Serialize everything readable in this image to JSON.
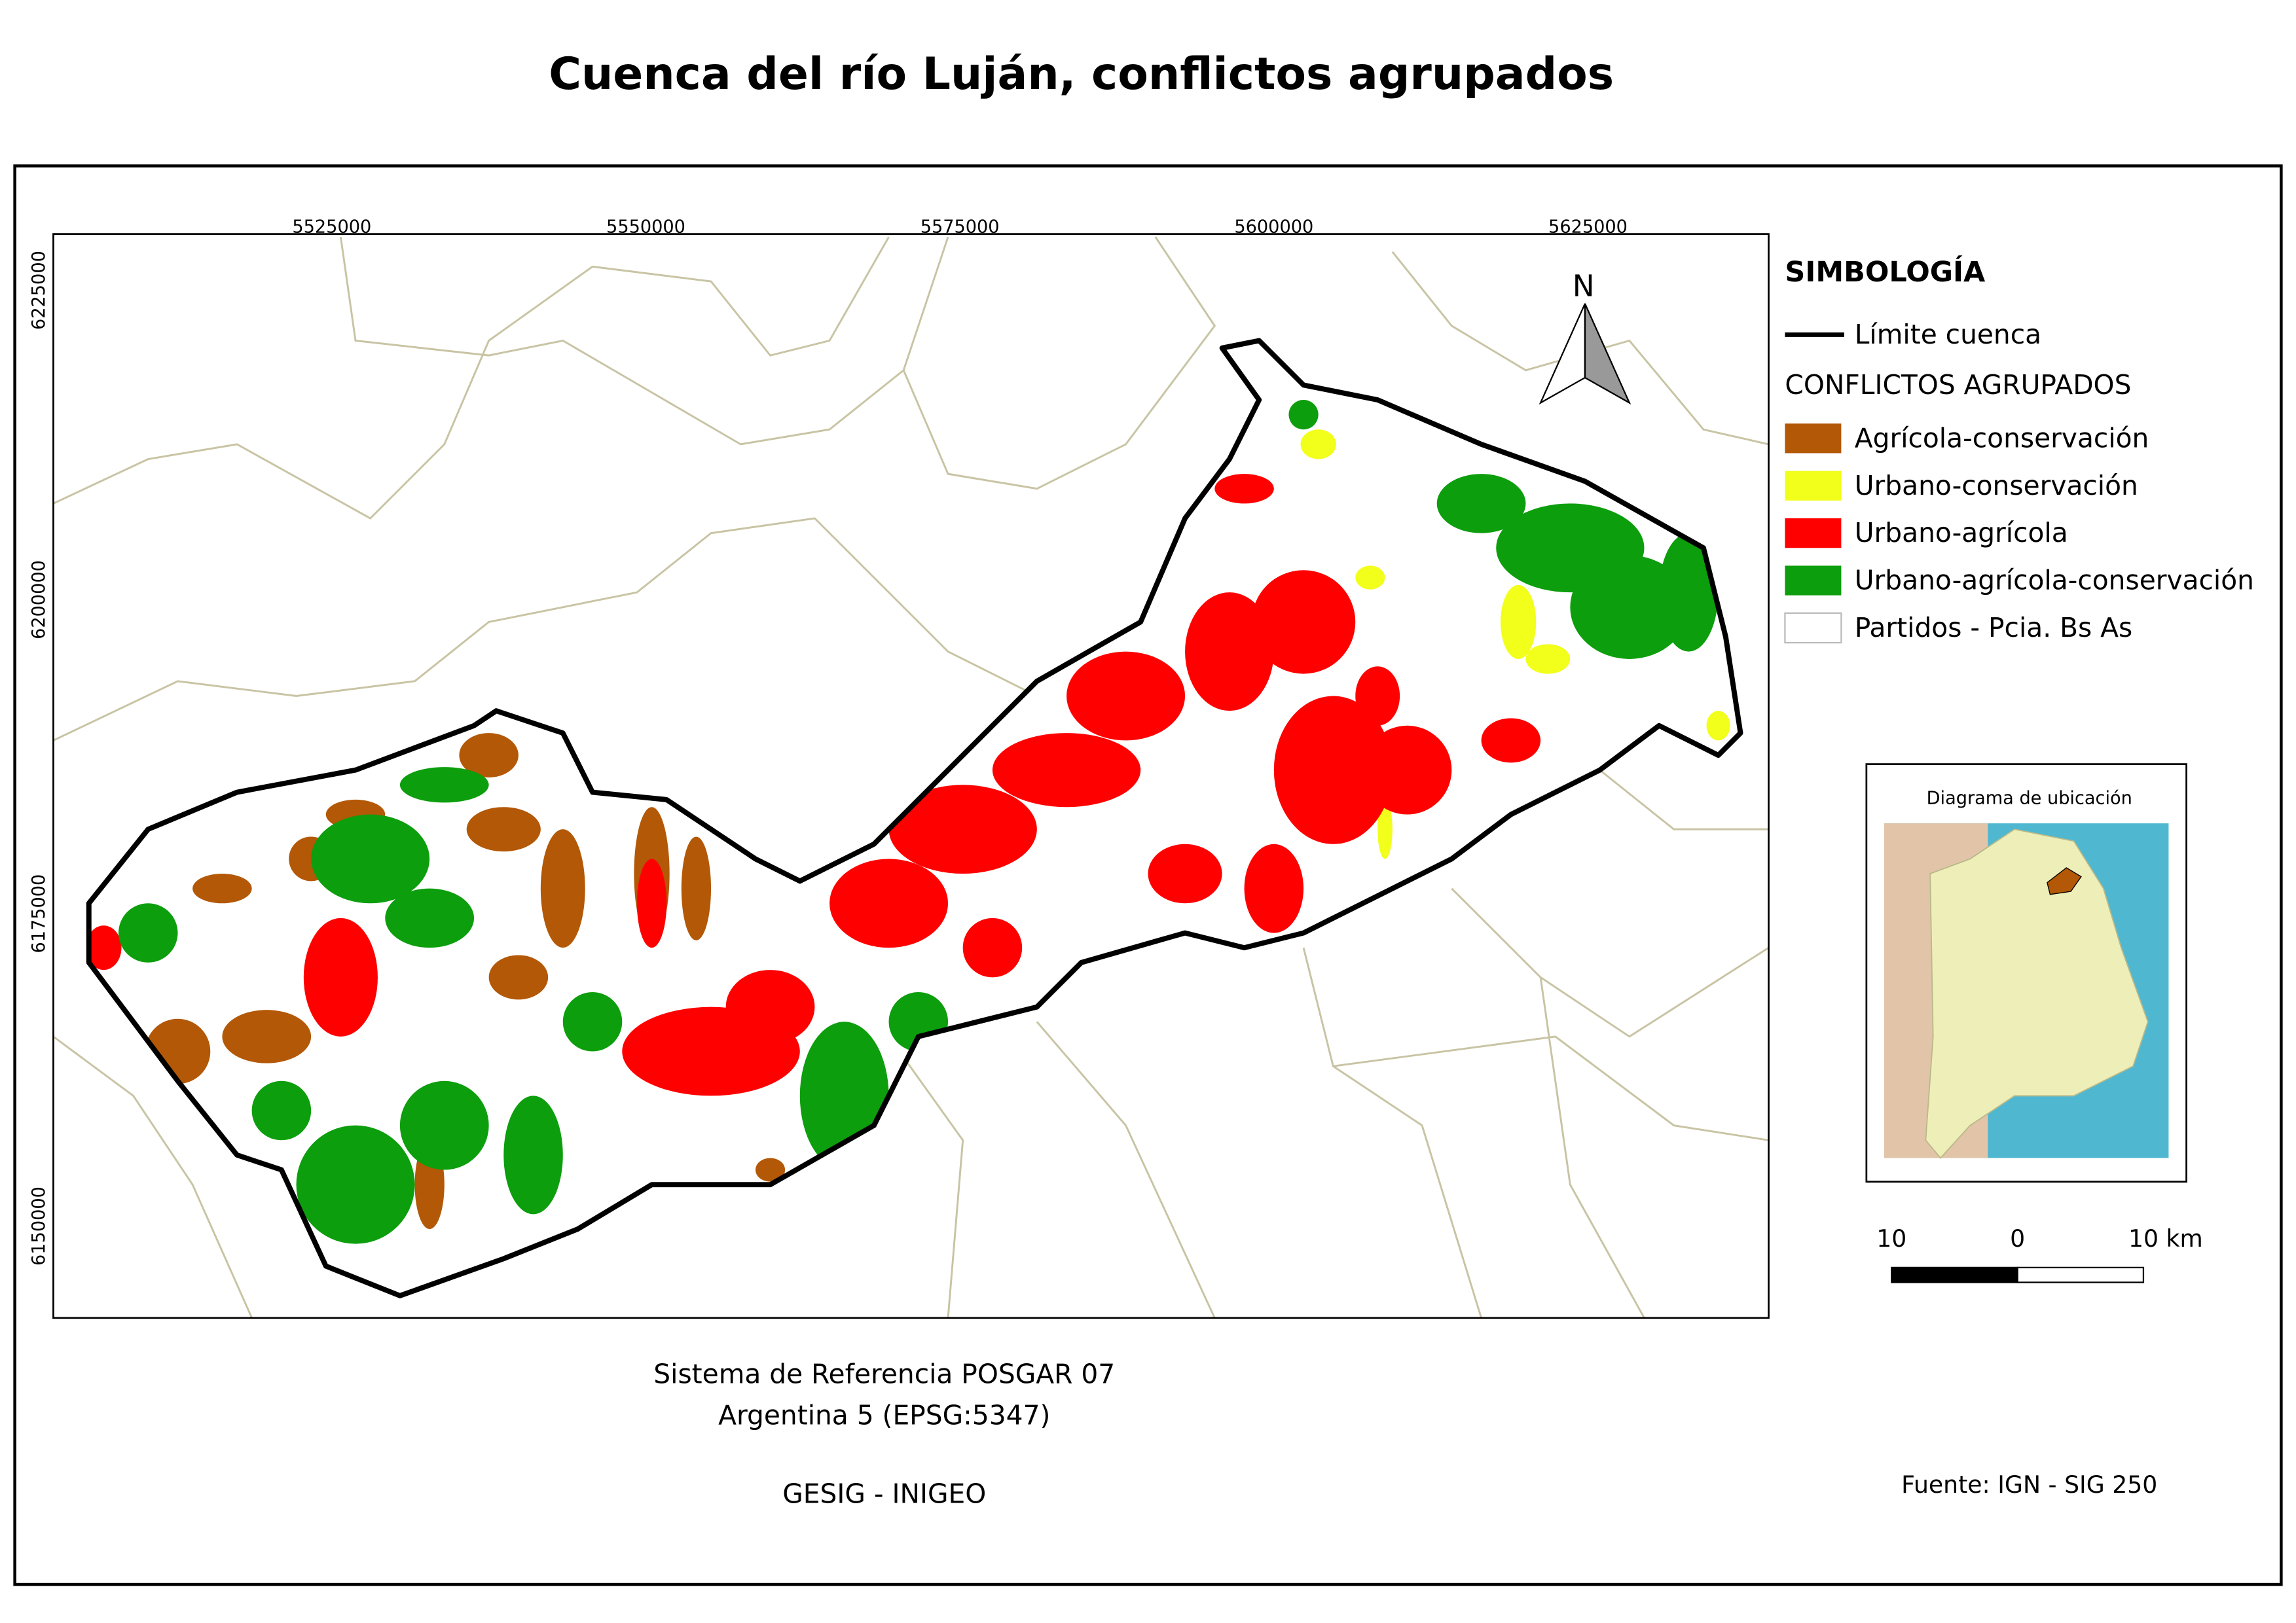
{
  "title": "Cuenca del río Luján, conflictos agrupados",
  "map": {
    "x_ticks": [
      5525000,
      5550000,
      5575000,
      5600000,
      5625000
    ],
    "y_ticks": [
      6225000,
      6200000,
      6175000,
      6150000
    ],
    "north": "N"
  },
  "legend": {
    "title": "SIMBOLOGÍA",
    "boundary": "Límite cuenca",
    "group_title": "CONFLICTOS AGRUPADOS",
    "items": [
      {
        "label": "Agrícola-conservación",
        "color": "#b35806"
      },
      {
        "label": "Urbano-conservación",
        "color": "#f2ff1a"
      },
      {
        "label": "Urbano-agrícola",
        "color": "#ff0000"
      },
      {
        "label": "Urbano-agrícola-conservación",
        "color": "#0c9e0c"
      },
      {
        "label": "Partidos - Pcia. Bs As",
        "color": "#ffffff"
      }
    ]
  },
  "inset": {
    "title": "Diagrama de ubicación"
  },
  "scale_bar": {
    "labels": [
      "10",
      "0",
      "10 km"
    ]
  },
  "notes": {
    "crs": [
      "Sistema de Referencia POSGAR 07",
      "Argentina 5 (EPSG:5347)"
    ],
    "credit": "GESIG - INIGEO",
    "source": "Fuente: IGN - SIG 250"
  }
}
